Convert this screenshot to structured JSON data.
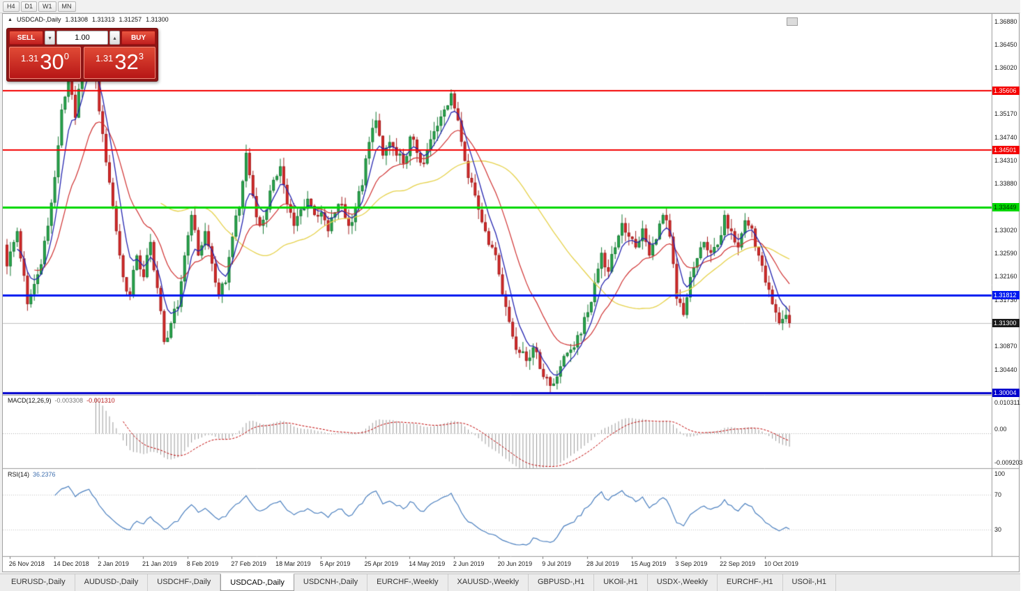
{
  "toolbar": {
    "timeframes": [
      "H4",
      "D1",
      "W1",
      "MN"
    ]
  },
  "header": {
    "direction_icon": "▲",
    "symbol": "USDCAD-,Daily",
    "open": "1.31308",
    "high": "1.31313",
    "low": "1.31257",
    "close": "1.31300"
  },
  "trade_panel": {
    "sell_label": "SELL",
    "buy_label": "BUY",
    "volume": "1.00",
    "volume_down_icon": "▾",
    "volume_up_icon": "▴",
    "sell_price": {
      "prefix": "1.31",
      "big": "30",
      "sup": "0"
    },
    "buy_price": {
      "prefix": "1.31",
      "big": "32",
      "sup": "3"
    }
  },
  "chart_data": {
    "type": "candlestick",
    "title": "USDCAD-,Daily",
    "y_range": [
      1.2997,
      1.3702
    ],
    "current_price": 1.313,
    "y_ticks": [
      "1.36880",
      "1.36450",
      "1.36020",
      "1.35170",
      "1.34740",
      "1.34310",
      "1.33880",
      "1.33020",
      "1.32590",
      "1.32160",
      "1.31730",
      "1.30870",
      "1.30440"
    ],
    "x_labels": [
      {
        "text": "26 Nov 2018",
        "i": 1
      },
      {
        "text": "14 Dec 2018",
        "i": 14
      },
      {
        "text": "2 Jan 2019",
        "i": 27
      },
      {
        "text": "21 Jan 2019",
        "i": 40
      },
      {
        "text": "8 Feb 2019",
        "i": 53
      },
      {
        "text": "27 Feb 2019",
        "i": 66
      },
      {
        "text": "18 Mar 2019",
        "i": 79
      },
      {
        "text": "5 Apr 2019",
        "i": 92
      },
      {
        "text": "25 Apr 2019",
        "i": 105
      },
      {
        "text": "14 May 2019",
        "i": 118
      },
      {
        "text": "2 Jun 2019",
        "i": 131
      },
      {
        "text": "20 Jun 2019",
        "i": 144
      },
      {
        "text": "9 Jul 2019",
        "i": 157
      },
      {
        "text": "28 Jul 2019",
        "i": 170
      },
      {
        "text": "15 Aug 2019",
        "i": 183
      },
      {
        "text": "3 Sep 2019",
        "i": 196
      },
      {
        "text": "22 Sep 2019",
        "i": 209
      },
      {
        "text": "10 Oct 2019",
        "i": 222
      }
    ],
    "candle_count": 230,
    "noise_amplitude": 0.0018,
    "price_anchors": [
      [
        0,
        1.3235
      ],
      [
        3,
        1.33
      ],
      [
        6,
        1.3165
      ],
      [
        9,
        1.322
      ],
      [
        12,
        1.331
      ],
      [
        14,
        1.34
      ],
      [
        16,
        1.3525
      ],
      [
        18,
        1.3585
      ],
      [
        20,
        1.351
      ],
      [
        22,
        1.36
      ],
      [
        24,
        1.3655
      ],
      [
        26,
        1.358
      ],
      [
        28,
        1.348
      ],
      [
        30,
        1.339
      ],
      [
        32,
        1.33
      ],
      [
        34,
        1.3215
      ],
      [
        36,
        1.318
      ],
      [
        38,
        1.3255
      ],
      [
        40,
        1.3215
      ],
      [
        42,
        1.328
      ],
      [
        44,
        1.3195
      ],
      [
        46,
        1.3095
      ],
      [
        48,
        1.313
      ],
      [
        50,
        1.316
      ],
      [
        52,
        1.3255
      ],
      [
        54,
        1.333
      ],
      [
        56,
        1.3255
      ],
      [
        58,
        1.33
      ],
      [
        60,
        1.324
      ],
      [
        62,
        1.318
      ],
      [
        64,
        1.3205
      ],
      [
        66,
        1.329
      ],
      [
        68,
        1.3345
      ],
      [
        70,
        1.3445
      ],
      [
        72,
        1.3365
      ],
      [
        74,
        1.331
      ],
      [
        76,
        1.334
      ],
      [
        78,
        1.3395
      ],
      [
        80,
        1.342
      ],
      [
        82,
        1.335
      ],
      [
        84,
        1.331
      ],
      [
        86,
        1.334
      ],
      [
        88,
        1.336
      ],
      [
        90,
        1.333
      ],
      [
        92,
        1.3335
      ],
      [
        94,
        1.33
      ],
      [
        96,
        1.3335
      ],
      [
        98,
        1.335
      ],
      [
        100,
        1.331
      ],
      [
        102,
        1.3345
      ],
      [
        104,
        1.3385
      ],
      [
        106,
        1.3465
      ],
      [
        108,
        1.3505
      ],
      [
        110,
        1.344
      ],
      [
        112,
        1.3465
      ],
      [
        114,
        1.344
      ],
      [
        116,
        1.3425
      ],
      [
        118,
        1.3475
      ],
      [
        120,
        1.3445
      ],
      [
        122,
        1.3425
      ],
      [
        124,
        1.347
      ],
      [
        126,
        1.3495
      ],
      [
        128,
        1.3525
      ],
      [
        130,
        1.3555
      ],
      [
        132,
        1.3505
      ],
      [
        134,
        1.343
      ],
      [
        136,
        1.339
      ],
      [
        138,
        1.334
      ],
      [
        140,
        1.33
      ],
      [
        142,
        1.327
      ],
      [
        144,
        1.322
      ],
      [
        146,
        1.316
      ],
      [
        148,
        1.3105
      ],
      [
        150,
        1.3075
      ],
      [
        152,
        1.306
      ],
      [
        154,
        1.3085
      ],
      [
        156,
        1.3045
      ],
      [
        158,
        1.303
      ],
      [
        160,
        1.3018
      ],
      [
        162,
        1.305
      ],
      [
        164,
        1.3075
      ],
      [
        166,
        1.3085
      ],
      [
        168,
        1.311
      ],
      [
        170,
        1.315
      ],
      [
        172,
        1.3205
      ],
      [
        174,
        1.326
      ],
      [
        176,
        1.3225
      ],
      [
        178,
        1.327
      ],
      [
        180,
        1.3315
      ],
      [
        182,
        1.329
      ],
      [
        184,
        1.327
      ],
      [
        186,
        1.3305
      ],
      [
        188,
        1.3255
      ],
      [
        190,
        1.3285
      ],
      [
        192,
        1.333
      ],
      [
        194,
        1.329
      ],
      [
        196,
        1.3175
      ],
      [
        198,
        1.3145
      ],
      [
        200,
        1.3215
      ],
      [
        202,
        1.325
      ],
      [
        204,
        1.328
      ],
      [
        206,
        1.326
      ],
      [
        208,
        1.3275
      ],
      [
        210,
        1.333
      ],
      [
        212,
        1.33
      ],
      [
        214,
        1.327
      ],
      [
        216,
        1.332
      ],
      [
        218,
        1.3305
      ],
      [
        220,
        1.3255
      ],
      [
        222,
        1.3205
      ],
      [
        224,
        1.3165
      ],
      [
        226,
        1.313
      ],
      [
        228,
        1.3145
      ],
      [
        229,
        1.313
      ]
    ],
    "levels": [
      {
        "price": 1.35606,
        "label": "1.35606",
        "color": "#f40000",
        "text_color": "#ffffff",
        "width": 2
      },
      {
        "price": 1.34501,
        "label": "1.34501",
        "color": "#f40000",
        "text_color": "#ffffff",
        "width": 2
      },
      {
        "price": 1.33449,
        "label": "1.33449",
        "color": "#00d800",
        "text_color": "#003300",
        "width": 3
      },
      {
        "price": 1.31812,
        "label": "1.31812",
        "color": "#0018f0",
        "text_color": "#ffffff",
        "width": 3
      },
      {
        "price": 1.313,
        "label": "1.31300",
        "color": "#1a1a1a",
        "text_color": "#ffffff",
        "width": 1,
        "style": "bid"
      },
      {
        "price": 1.30004,
        "label": "1.30004",
        "color": "#0000cd",
        "text_color": "#ffffff",
        "width": 3
      }
    ],
    "ma_periods": {
      "fast": 6,
      "mid": 18,
      "slow": 45
    },
    "colors": {
      "bull": "#2ba84f",
      "bull_edge": "#157a33",
      "bear": "#d62b2b",
      "bear_edge": "#a31d1d",
      "ma_fast": "#2424b0",
      "ma_mid": "#d03030",
      "ma_slow": "#e6d24a",
      "macd_bar": "#9a9a9a",
      "macd_signal": "#c00000",
      "rsi_line": "#4a7fbf"
    }
  },
  "macd_panel": {
    "name": "MACD(12,26,9)",
    "value_main": "-0.003308",
    "value_signal": "-0.001310",
    "axis_max": "0.010311",
    "axis_zero": "0.00",
    "axis_min": "-0.009203",
    "range": [
      -0.0092,
      0.0103
    ]
  },
  "rsi_panel": {
    "name": "RSI(14)",
    "value": "36.2376",
    "axis": [
      {
        "v": 100,
        "label": "100"
      },
      {
        "v": 70,
        "label": "70"
      },
      {
        "v": 30,
        "label": "30"
      }
    ],
    "levels": [
      70,
      30
    ]
  },
  "tabs": [
    {
      "label": "EURUSD-,Daily",
      "active": false
    },
    {
      "label": "AUDUSD-,Daily",
      "active": false
    },
    {
      "label": "USDCHF-,Daily",
      "active": false
    },
    {
      "label": "USDCAD-,Daily",
      "active": true
    },
    {
      "label": "USDCNH-,Daily",
      "active": false
    },
    {
      "label": "EURCHF-,Weekly",
      "active": false
    },
    {
      "label": "XAUUSD-,Weekly",
      "active": false
    },
    {
      "label": "GBPUSD-,H1",
      "active": false
    },
    {
      "label": "UKOil-,H1",
      "active": false
    },
    {
      "label": "USDX-,Weekly",
      "active": false
    },
    {
      "label": "EURCHF-,H1",
      "active": false
    },
    {
      "label": "USOil-,H1",
      "active": false
    }
  ]
}
